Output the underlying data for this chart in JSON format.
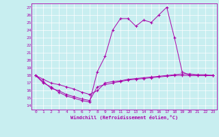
{
  "xlabel": "Windchill (Refroidissement éolien,°C)",
  "bg_color": "#c8eef0",
  "line_color": "#aa00aa",
  "grid_color": "#ffffff",
  "xlim": [
    -0.5,
    23.5
  ],
  "ylim": [
    13.5,
    27.5
  ],
  "xticks": [
    0,
    1,
    2,
    3,
    4,
    5,
    6,
    7,
    8,
    9,
    10,
    11,
    12,
    13,
    14,
    15,
    16,
    17,
    18,
    19,
    20,
    21,
    22,
    23
  ],
  "yticks": [
    14,
    15,
    16,
    17,
    18,
    19,
    20,
    21,
    22,
    23,
    24,
    25,
    26,
    27
  ],
  "curve1_x": [
    0,
    1,
    2,
    3,
    4,
    5,
    6,
    7,
    8,
    9,
    10,
    11,
    12,
    13,
    14,
    15,
    16,
    17,
    18,
    19,
    20,
    21,
    22,
    23
  ],
  "curve1_y": [
    18,
    17,
    16.5,
    15.8,
    15.3,
    15.0,
    14.7,
    14.5,
    18.5,
    20.5,
    24.0,
    25.5,
    25.5,
    24.5,
    25.3,
    25.0,
    26.0,
    27.0,
    23.0,
    18.5,
    18.0,
    18.0,
    18.0,
    18.0
  ],
  "curve2_x": [
    0,
    1,
    2,
    3,
    4,
    5,
    6,
    7,
    8,
    9,
    10,
    11,
    12,
    13,
    14,
    15,
    16,
    17,
    18,
    19,
    20,
    21,
    22,
    23
  ],
  "curve2_y": [
    18,
    17.5,
    17.0,
    16.8,
    16.5,
    16.2,
    15.8,
    15.5,
    16.0,
    17.0,
    17.2,
    17.3,
    17.5,
    17.6,
    17.7,
    17.8,
    17.9,
    18.0,
    18.1,
    18.2,
    18.2,
    18.1,
    18.1,
    18.0
  ],
  "curve3_x": [
    0,
    1,
    2,
    3,
    4,
    5,
    6,
    7,
    8,
    9,
    10,
    11,
    12,
    13,
    14,
    15,
    16,
    17,
    18,
    19,
    20,
    21,
    22,
    23
  ],
  "curve3_y": [
    18,
    17.2,
    16.3,
    16.0,
    15.5,
    15.2,
    14.9,
    14.7,
    16.5,
    16.8,
    17.0,
    17.2,
    17.4,
    17.5,
    17.6,
    17.7,
    17.8,
    17.9,
    18.0,
    18.0,
    18.0,
    18.0,
    18.0,
    18.0
  ]
}
